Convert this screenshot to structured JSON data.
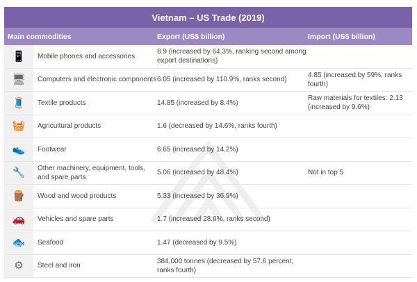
{
  "title": "Vietnam – US Trade (2019)",
  "headers": {
    "commodity": "Main commodities",
    "export": "Export (US$ billion)",
    "import": "Import (US$ billion)"
  },
  "rows": [
    {
      "icon": "mobile-phone-icon",
      "glyph": "📱",
      "name": "Mobile phones and accessories",
      "export": "8.9 (increased by 64.3%, ranking second among export destinations)",
      "import": ""
    },
    {
      "icon": "computer-icon",
      "glyph": "🖥",
      "name": "Computers and electronic components",
      "export": "6.05 (increased by 110.9%, ranks second)",
      "import": "4.85 (increased by 59%, ranks fourth)"
    },
    {
      "icon": "textile-icon",
      "glyph": "🧵",
      "name": "Textile products",
      "export": "14.85 (increased by 8.4%)",
      "import": "Raw materials for textiles: 2.13 (increased by 9.6%)"
    },
    {
      "icon": "agriculture-icon",
      "glyph": "🧺",
      "name": "Agricultural products",
      "export": "1.6 (decreased by 14.6%, ranks fourth)",
      "import": ""
    },
    {
      "icon": "shoe-icon",
      "glyph": "👟",
      "name": "Footwear",
      "export": "6.65 (increased by 14.2%)",
      "import": ""
    },
    {
      "icon": "tools-icon",
      "glyph": "🔧",
      "name": "Other machinery, equipment, tools, and spare parts",
      "export": "5.06 (increased by 48.4%)",
      "import": "Not in top 5"
    },
    {
      "icon": "wood-icon",
      "glyph": "🪵",
      "name": "Wood and wood products",
      "export": "5.33 (increased by 36.9%)",
      "import": ""
    },
    {
      "icon": "car-icon",
      "glyph": "🚗",
      "name": "Vehicles and spare parts",
      "export": "1.7 (increased 28.6%, ranks second)",
      "import": ""
    },
    {
      "icon": "fish-icon",
      "glyph": "🐟",
      "name": "Seafood",
      "export": "1.47 (decreased by 9.5%)",
      "import": ""
    },
    {
      "icon": "steel-icon",
      "glyph": "⚙",
      "name": "Steel and iron",
      "export": "384,000 tonnes (decreased by 57.6 percent, ranks fourth)",
      "import": ""
    }
  ]
}
